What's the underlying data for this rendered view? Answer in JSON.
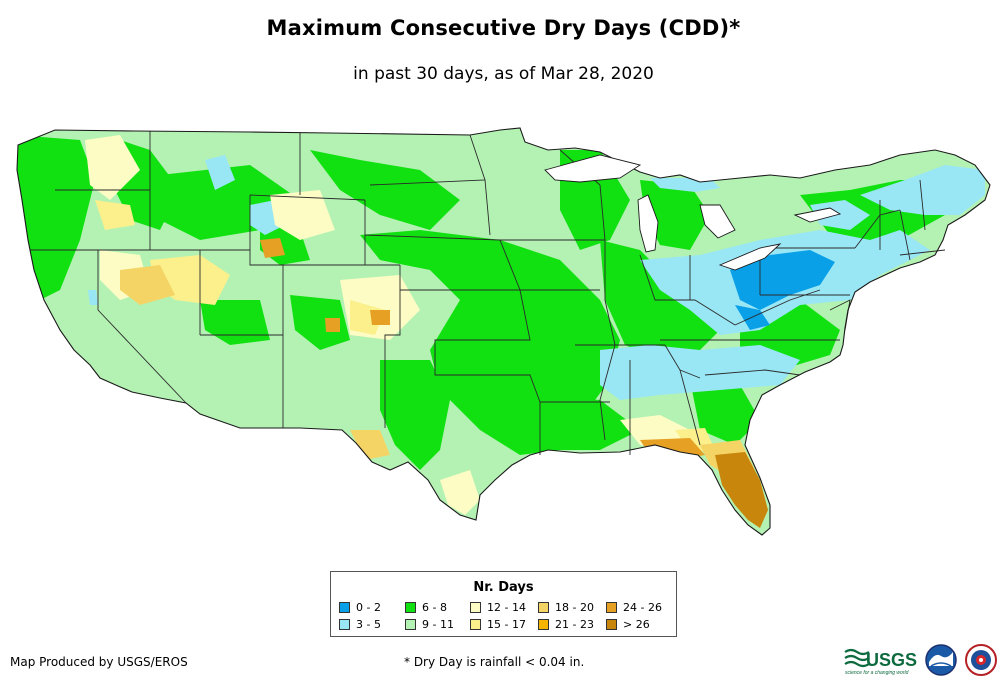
{
  "header": {
    "title": "Maximum Consecutive Dry Days (CDD)*",
    "subtitle": "in past 30 days, as of Mar 28, 2020"
  },
  "legend": {
    "title": "Nr. Days",
    "items": [
      {
        "label": "0 - 2",
        "color": "#0aa0e8"
      },
      {
        "label": "3 - 5",
        "color": "#99e6f5"
      },
      {
        "label": "6 - 8",
        "color": "#11e011"
      },
      {
        "label": "9 - 11",
        "color": "#b4f2b4"
      },
      {
        "label": "12 - 14",
        "color": "#fcfcc4"
      },
      {
        "label": "15 - 17",
        "color": "#fbf08c"
      },
      {
        "label": "18 - 20",
        "color": "#f5d466"
      },
      {
        "label": "21 - 23",
        "color": "#f4b400"
      },
      {
        "label": "24 - 26",
        "color": "#e6a024"
      },
      {
        "label": "> 26",
        "color": "#c8860c"
      }
    ]
  },
  "footer": {
    "credit": "Map Produced by USGS/EROS",
    "footnote": "* Dry Day is rainfall < 0.04 in.",
    "logo_usgs": "USGS",
    "logo_usgs_tagline": "science for a changing world"
  },
  "map": {
    "region": "Contiguous United States",
    "outline_color": "#222222",
    "water_color": "#ffffff"
  }
}
